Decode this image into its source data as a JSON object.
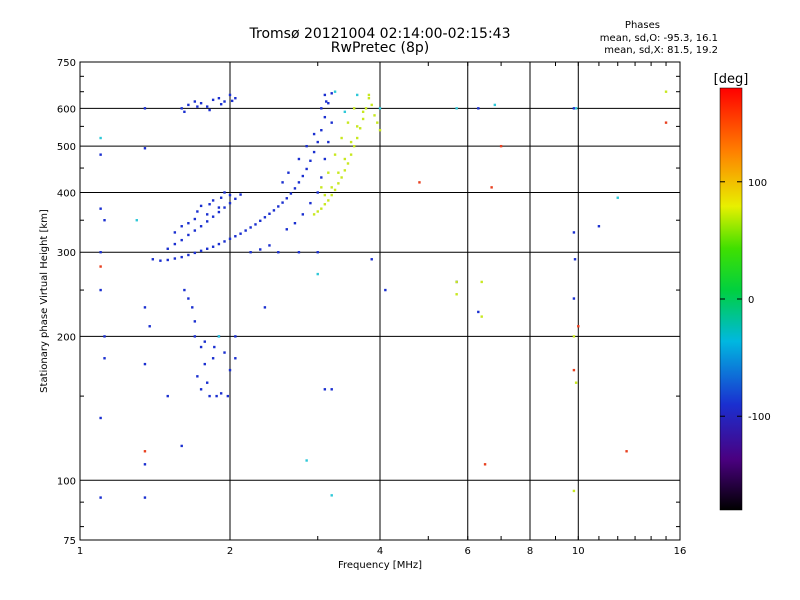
{
  "header": {
    "title": "Tromsø 20121004 02:14:00-02:15:43",
    "subtitle": "RwPretec (8p)"
  },
  "stats": {
    "heading": "Phases",
    "line_o": "mean, sd,O: -95.3, 16.1",
    "line_x": "mean, sd,X:  81.5, 19.2"
  },
  "chart_data": {
    "type": "scatter",
    "xlabel": "Frequency [MHz]",
    "ylabel": "Stationary phase Virtual Height [km]",
    "x_scale": "log",
    "y_scale": "log",
    "xlim": [
      1,
      16
    ],
    "ylim": [
      75,
      750
    ],
    "x_ticks": [
      1,
      2,
      4,
      6,
      8,
      10,
      16
    ],
    "x_tick_labels": [
      "1",
      "2",
      "4",
      "6",
      "8",
      "10",
      "16"
    ],
    "y_ticks": [
      75,
      100,
      200,
      300,
      400,
      500,
      600,
      750
    ],
    "y_tick_labels": [
      "75",
      "100",
      "200",
      "300",
      "400",
      "500",
      "600",
      "750"
    ],
    "grid": true,
    "colorbar": {
      "label": "[deg]",
      "range": [
        -180,
        180
      ],
      "ticks": [
        100,
        0,
        -100
      ],
      "tick_labels": [
        "100",
        "0",
        "-100"
      ]
    },
    "series": [
      {
        "description": "O-mode F trace",
        "color": "#1a2fd0",
        "points": [
          [
            1.4,
            290
          ],
          [
            1.45,
            288
          ],
          [
            1.5,
            289
          ],
          [
            1.55,
            291
          ],
          [
            1.6,
            293
          ],
          [
            1.65,
            296
          ],
          [
            1.7,
            299
          ],
          [
            1.75,
            302
          ],
          [
            1.8,
            305
          ],
          [
            1.85,
            308
          ],
          [
            1.9,
            312
          ],
          [
            1.95,
            316
          ],
          [
            2.0,
            320
          ],
          [
            2.05,
            324
          ],
          [
            2.1,
            328
          ],
          [
            2.15,
            333
          ],
          [
            2.2,
            338
          ],
          [
            2.25,
            343
          ],
          [
            2.3,
            349
          ],
          [
            2.35,
            355
          ],
          [
            2.4,
            361
          ],
          [
            2.45,
            367
          ],
          [
            2.5,
            374
          ],
          [
            2.55,
            381
          ],
          [
            2.6,
            389
          ],
          [
            2.65,
            398
          ],
          [
            2.7,
            408
          ],
          [
            2.75,
            420
          ],
          [
            2.8,
            433
          ],
          [
            2.85,
            448
          ],
          [
            2.9,
            466
          ],
          [
            2.95,
            486
          ],
          [
            3.0,
            510
          ],
          [
            3.05,
            540
          ],
          [
            3.1,
            575
          ],
          [
            3.15,
            615
          ],
          [
            3.2,
            645
          ],
          [
            1.5,
            305
          ],
          [
            1.55,
            312
          ],
          [
            1.6,
            318
          ],
          [
            1.65,
            326
          ],
          [
            1.7,
            333
          ],
          [
            1.75,
            340
          ],
          [
            1.8,
            348
          ],
          [
            1.85,
            356
          ],
          [
            1.9,
            364
          ],
          [
            1.95,
            372
          ],
          [
            2.0,
            380
          ],
          [
            2.05,
            388
          ],
          [
            2.1,
            396
          ],
          [
            1.6,
            340
          ],
          [
            1.7,
            352
          ],
          [
            1.8,
            360
          ],
          [
            1.9,
            372
          ],
          [
            2.0,
            395
          ],
          [
            1.75,
            375
          ],
          [
            1.85,
            385
          ],
          [
            1.95,
            400
          ],
          [
            1.55,
            330
          ],
          [
            1.65,
            345
          ],
          [
            1.72,
            365
          ],
          [
            1.82,
            378
          ],
          [
            1.92,
            390
          ],
          [
            2.2,
            300
          ],
          [
            2.3,
            304
          ],
          [
            2.4,
            310
          ],
          [
            2.6,
            335
          ],
          [
            2.7,
            345
          ],
          [
            2.8,
            360
          ],
          [
            2.9,
            380
          ],
          [
            3.0,
            400
          ],
          [
            3.05,
            430
          ],
          [
            3.1,
            470
          ],
          [
            3.15,
            510
          ],
          [
            3.2,
            560
          ],
          [
            2.55,
            420
          ],
          [
            2.62,
            440
          ],
          [
            2.75,
            470
          ],
          [
            2.85,
            500
          ],
          [
            2.95,
            530
          ],
          [
            3.05,
            600
          ],
          [
            3.1,
            640
          ],
          [
            3.12,
            620
          ],
          [
            1.6,
            600
          ],
          [
            1.65,
            610
          ],
          [
            1.7,
            620
          ],
          [
            1.75,
            615
          ],
          [
            1.8,
            605
          ],
          [
            1.85,
            625
          ],
          [
            1.9,
            630
          ],
          [
            1.95,
            620
          ],
          [
            2.0,
            640
          ],
          [
            2.05,
            630
          ],
          [
            1.62,
            590
          ],
          [
            1.72,
            605
          ],
          [
            1.82,
            595
          ],
          [
            1.92,
            612
          ],
          [
            2.02,
            622
          ],
          [
            1.62,
            250
          ],
          [
            1.65,
            240
          ],
          [
            1.68,
            230
          ],
          [
            1.7,
            215
          ],
          [
            1.75,
            190
          ],
          [
            1.78,
            175
          ],
          [
            1.8,
            160
          ],
          [
            1.82,
            150
          ],
          [
            1.85,
            180
          ],
          [
            1.9,
            200
          ],
          [
            1.95,
            185
          ],
          [
            2.0,
            170
          ],
          [
            1.72,
            165
          ],
          [
            1.75,
            155
          ],
          [
            1.88,
            150
          ],
          [
            1.92,
            152
          ],
          [
            1.98,
            150
          ],
          [
            2.05,
            180
          ],
          [
            2.05,
            200
          ],
          [
            1.7,
            200
          ],
          [
            1.78,
            195
          ],
          [
            1.86,
            190
          ],
          [
            1.1,
            480
          ],
          [
            1.1,
            370
          ],
          [
            1.12,
            350
          ],
          [
            1.1,
            300
          ],
          [
            1.1,
            250
          ],
          [
            1.12,
            200
          ],
          [
            1.12,
            180
          ],
          [
            1.1,
            135
          ],
          [
            1.1,
            92
          ],
          [
            1.35,
            600
          ],
          [
            1.35,
            495
          ],
          [
            1.35,
            230
          ],
          [
            1.38,
            210
          ],
          [
            1.35,
            175
          ],
          [
            1.35,
            108
          ],
          [
            1.35,
            92
          ],
          [
            1.5,
            150
          ],
          [
            1.6,
            118
          ],
          [
            2.35,
            230
          ],
          [
            2.5,
            300
          ],
          [
            2.75,
            300
          ],
          [
            3.0,
            300
          ],
          [
            3.1,
            155
          ],
          [
            3.2,
            155
          ],
          [
            3.85,
            290
          ],
          [
            4.1,
            250
          ],
          [
            5.7,
            260
          ],
          [
            6.3,
            225
          ],
          [
            6.3,
            600
          ],
          [
            9.8,
            600
          ],
          [
            9.8,
            330
          ],
          [
            9.85,
            290
          ],
          [
            9.8,
            240
          ],
          [
            11.0,
            340
          ]
        ]
      },
      {
        "description": "X-mode F trace",
        "color": "#c8e820",
        "points": [
          [
            2.95,
            360
          ],
          [
            3.0,
            365
          ],
          [
            3.05,
            370
          ],
          [
            3.1,
            378
          ],
          [
            3.15,
            385
          ],
          [
            3.2,
            395
          ],
          [
            3.25,
            405
          ],
          [
            3.3,
            418
          ],
          [
            3.35,
            430
          ],
          [
            3.4,
            445
          ],
          [
            3.45,
            460
          ],
          [
            3.5,
            480
          ],
          [
            3.55,
            500
          ],
          [
            3.6,
            520
          ],
          [
            3.65,
            545
          ],
          [
            3.7,
            570
          ],
          [
            3.75,
            600
          ],
          [
            3.8,
            630
          ],
          [
            3.85,
            610
          ],
          [
            3.9,
            580
          ],
          [
            3.95,
            560
          ],
          [
            4.0,
            540
          ],
          [
            3.1,
            395
          ],
          [
            3.2,
            410
          ],
          [
            3.3,
            440
          ],
          [
            3.4,
            470
          ],
          [
            3.5,
            510
          ],
          [
            3.6,
            550
          ],
          [
            3.7,
            590
          ],
          [
            3.8,
            640
          ],
          [
            3.55,
            600
          ],
          [
            3.45,
            560
          ],
          [
            3.35,
            520
          ],
          [
            3.25,
            480
          ],
          [
            3.15,
            440
          ],
          [
            3.05,
            410
          ],
          [
            5.7,
            260
          ],
          [
            5.7,
            245
          ],
          [
            6.4,
            260
          ],
          [
            6.4,
            220
          ],
          [
            9.8,
            200
          ],
          [
            9.9,
            160
          ],
          [
            9.8,
            95
          ],
          [
            15.0,
            650
          ]
        ]
      },
      {
        "description": "scattered mixed phase echoes",
        "color": "#2ec8d8",
        "points": [
          [
            1.1,
            520
          ],
          [
            1.3,
            350
          ],
          [
            1.9,
            200
          ],
          [
            3.25,
            650
          ],
          [
            3.4,
            590
          ],
          [
            3.6,
            640
          ],
          [
            4.0,
            600
          ],
          [
            3.0,
            270
          ],
          [
            5.7,
            600
          ],
          [
            6.8,
            610
          ],
          [
            9.9,
            600
          ],
          [
            12.0,
            390
          ],
          [
            2.85,
            110
          ],
          [
            3.2,
            93
          ]
        ]
      },
      {
        "description": "scattered red/orange echoes",
        "color": "#e84020",
        "points": [
          [
            4.8,
            420
          ],
          [
            6.5,
            108
          ],
          [
            7.0,
            500
          ],
          [
            12.5,
            115
          ],
          [
            9.8,
            170
          ],
          [
            10.0,
            210
          ],
          [
            1.35,
            115
          ],
          [
            1.1,
            280
          ],
          [
            6.7,
            410
          ],
          [
            15.0,
            560
          ]
        ]
      }
    ]
  }
}
